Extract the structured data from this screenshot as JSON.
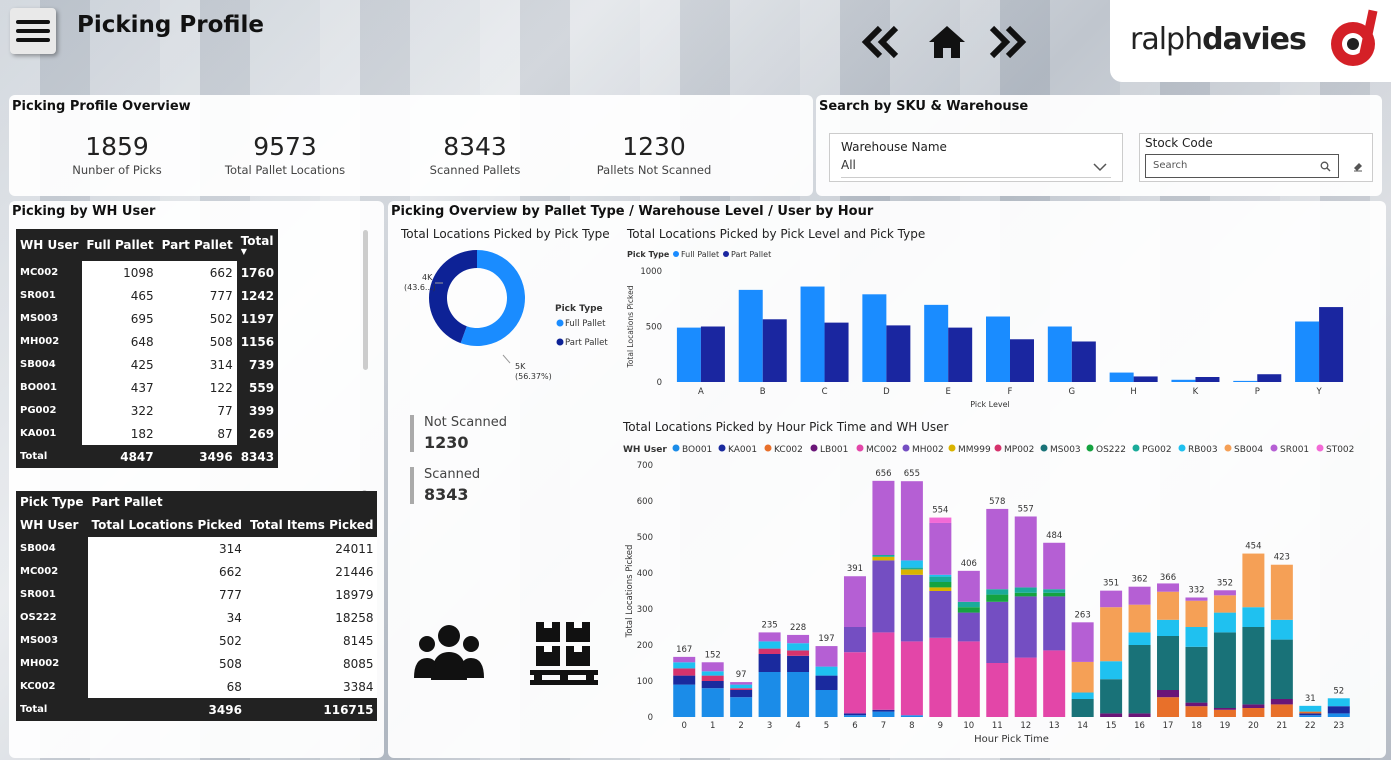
{
  "page": {
    "title": "Picking Profile"
  },
  "brand": {
    "name_light": "ralph",
    "name_bold": "davies"
  },
  "overview": {
    "title": "Picking Profile Overview",
    "kpis": [
      {
        "value": "1859",
        "label": "Nunber of Picks"
      },
      {
        "value": "9573",
        "label": "Total Pallet Locations"
      },
      {
        "value": "8343",
        "label": "Scanned Pallets"
      },
      {
        "value": "1230",
        "label": "Pallets Not Scanned"
      }
    ]
  },
  "search": {
    "title": "Search by SKU & Warehouse",
    "warehouse_label": "Warehouse Name",
    "warehouse_value": "All",
    "stock_label": "Stock Code",
    "stock_placeholder": "Search"
  },
  "wh_user_panel": {
    "title": "Picking by WH User"
  },
  "table1": {
    "headers": [
      "WH User",
      "Full Pallet",
      "Part Pallet",
      "Total"
    ],
    "rows": [
      [
        "MC002",
        "1098",
        "662",
        "1760"
      ],
      [
        "SR001",
        "465",
        "777",
        "1242"
      ],
      [
        "MS003",
        "695",
        "502",
        "1197"
      ],
      [
        "MH002",
        "648",
        "508",
        "1156"
      ],
      [
        "SB004",
        "425",
        "314",
        "739"
      ],
      [
        "BO001",
        "437",
        "122",
        "559"
      ],
      [
        "PG002",
        "322",
        "77",
        "399"
      ],
      [
        "KA001",
        "182",
        "87",
        "269"
      ]
    ],
    "total": [
      "Total",
      "4847",
      "3496",
      "8343"
    ]
  },
  "table2": {
    "pick_type_label": "Pick Type",
    "pick_type_value": "Part Pallet",
    "headers": [
      "WH User",
      "Total Locations Picked",
      "Total Items Picked"
    ],
    "rows": [
      [
        "SB004",
        "314",
        "24011"
      ],
      [
        "MC002",
        "662",
        "21446"
      ],
      [
        "SR001",
        "777",
        "18979"
      ],
      [
        "OS222",
        "34",
        "18258"
      ],
      [
        "MS003",
        "502",
        "8145"
      ],
      [
        "MH002",
        "508",
        "8085"
      ],
      [
        "KC002",
        "68",
        "3384"
      ]
    ],
    "total": [
      "Total",
      "3496",
      "116715"
    ]
  },
  "overview_panel": {
    "title": "Picking Overview by Pallet Type / Warehouse Level / User by Hour"
  },
  "cards": {
    "not_scanned_label": "Not Scanned",
    "not_scanned_value": "1230",
    "scanned_label": "Scanned",
    "scanned_value": "8343"
  },
  "icons": [
    "menu-icon",
    "first-page-icon",
    "home-icon",
    "next-page-icon",
    "search-icon",
    "eraser-icon",
    "chevron-down-icon",
    "users-icon",
    "pallet-icon"
  ],
  "chart_data": [
    {
      "type": "pie",
      "title": "Total Locations Picked by Pick Type",
      "legend_title": "Pick Type",
      "legend_position": "right",
      "slices": [
        {
          "name": "Full Pallet",
          "value": 5000,
          "label": "5K",
          "pct": "(56.37%)",
          "color": "#1a8cff"
        },
        {
          "name": "Part Pallet",
          "value": 4000,
          "label": "4K",
          "pct": "(43.6...)",
          "color": "#0d2296"
        }
      ]
    },
    {
      "type": "bar",
      "title": "Total Locations Picked by Pick Level and Pick Type",
      "legend_title": "Pick Type",
      "xlabel": "Pick Level",
      "ylabel": "Total Locations Picked",
      "ylim": [
        0,
        1000
      ],
      "yticks": [
        0,
        500,
        1000
      ],
      "categories": [
        "A",
        "B",
        "C",
        "D",
        "E",
        "F",
        "G",
        "H",
        "K",
        "P",
        "Y"
      ],
      "series": [
        {
          "name": "Full Pallet",
          "color": "#1a8cff",
          "values": [
            490,
            830,
            860,
            790,
            695,
            590,
            500,
            85,
            20,
            10,
            545
          ]
        },
        {
          "name": "Part Pallet",
          "color": "#1a26a0",
          "values": [
            500,
            565,
            535,
            510,
            490,
            385,
            365,
            50,
            45,
            70,
            675
          ]
        }
      ]
    },
    {
      "type": "bar",
      "stacked": true,
      "title": "Total Locations Picked by Hour Pick Time and WH User",
      "legend_title": "WH User",
      "xlabel": "Hour Pick Time",
      "ylabel": "Total Locations Picked",
      "ylim": [
        0,
        700
      ],
      "yticks": [
        0,
        100,
        200,
        300,
        400,
        500,
        600,
        700
      ],
      "categories": [
        "0",
        "1",
        "2",
        "3",
        "4",
        "5",
        "6",
        "7",
        "8",
        "9",
        "10",
        "11",
        "12",
        "13",
        "14",
        "15",
        "16",
        "17",
        "18",
        "19",
        "20",
        "21",
        "22",
        "23"
      ],
      "totals": [
        167,
        152,
        97,
        235,
        228,
        197,
        391,
        656,
        655,
        554,
        406,
        578,
        557,
        484,
        263,
        351,
        362,
        366,
        332,
        352,
        454,
        423,
        31,
        52
      ],
      "series": [
        {
          "name": "BO001",
          "color": "#1b8ce8",
          "values": [
            90,
            80,
            55,
            125,
            125,
            75,
            5,
            15,
            5,
            0,
            0,
            0,
            0,
            0,
            0,
            0,
            0,
            0,
            0,
            0,
            0,
            0,
            5,
            10
          ]
        },
        {
          "name": "KA001",
          "color": "#1a2a9e",
          "values": [
            25,
            20,
            20,
            50,
            45,
            40,
            5,
            5,
            0,
            0,
            0,
            0,
            0,
            0,
            0,
            0,
            0,
            0,
            0,
            0,
            0,
            0,
            5,
            20
          ]
        },
        {
          "name": "KC002",
          "color": "#e8702a",
          "values": [
            0,
            0,
            0,
            0,
            0,
            0,
            0,
            0,
            0,
            0,
            0,
            0,
            0,
            0,
            0,
            0,
            0,
            55,
            30,
            20,
            25,
            35,
            5,
            0
          ]
        },
        {
          "name": "LB001",
          "color": "#6a1578",
          "values": [
            0,
            0,
            0,
            0,
            0,
            0,
            0,
            0,
            0,
            0,
            0,
            0,
            0,
            0,
            0,
            10,
            10,
            20,
            10,
            5,
            10,
            15,
            0,
            0
          ]
        },
        {
          "name": "MC002",
          "color": "#e346a8",
          "values": [
            0,
            0,
            0,
            0,
            0,
            0,
            170,
            215,
            205,
            220,
            210,
            150,
            165,
            185,
            0,
            0,
            0,
            0,
            0,
            0,
            0,
            0,
            0,
            0
          ]
        },
        {
          "name": "MH002",
          "color": "#744ec2",
          "values": [
            0,
            0,
            0,
            0,
            0,
            0,
            70,
            200,
            185,
            130,
            80,
            170,
            170,
            150,
            0,
            0,
            0,
            0,
            0,
            0,
            0,
            0,
            0,
            0
          ]
        },
        {
          "name": "MM999",
          "color": "#d9b300",
          "values": [
            0,
            0,
            0,
            0,
            0,
            0,
            0,
            10,
            15,
            10,
            0,
            0,
            0,
            0,
            0,
            0,
            0,
            0,
            0,
            0,
            0,
            0,
            0,
            0
          ]
        },
        {
          "name": "MP002",
          "color": "#d6336c",
          "values": [
            20,
            15,
            5,
            15,
            15,
            0,
            0,
            0,
            0,
            0,
            0,
            0,
            0,
            0,
            0,
            0,
            0,
            0,
            0,
            0,
            0,
            0,
            0,
            0
          ]
        },
        {
          "name": "MS003",
          "color": "#197278",
          "values": [
            0,
            0,
            0,
            0,
            0,
            0,
            0,
            0,
            0,
            0,
            0,
            0,
            0,
            0,
            50,
            95,
            190,
            150,
            155,
            210,
            215,
            165,
            0,
            0
          ]
        },
        {
          "name": "OS222",
          "color": "#15a340",
          "values": [
            0,
            0,
            0,
            0,
            0,
            0,
            0,
            0,
            0,
            15,
            15,
            20,
            10,
            10,
            0,
            0,
            0,
            0,
            0,
            0,
            0,
            0,
            0,
            0
          ]
        },
        {
          "name": "PG002",
          "color": "#1aab9a",
          "values": [
            0,
            0,
            0,
            0,
            0,
            0,
            0,
            5,
            5,
            15,
            15,
            15,
            15,
            10,
            0,
            0,
            0,
            0,
            0,
            0,
            0,
            0,
            0,
            0
          ]
        },
        {
          "name": "RB003",
          "color": "#1fc1f0",
          "values": [
            17,
            12,
            10,
            20,
            20,
            25,
            0,
            0,
            20,
            5,
            0,
            0,
            0,
            0,
            18,
            50,
            35,
            45,
            55,
            55,
            55,
            55,
            16,
            22
          ]
        },
        {
          "name": "SB004",
          "color": "#f5a056",
          "values": [
            0,
            0,
            0,
            0,
            0,
            0,
            0,
            0,
            0,
            0,
            0,
            0,
            0,
            0,
            85,
            150,
            77,
            78,
            73,
            48,
            149,
            153,
            0,
            0
          ]
        },
        {
          "name": "SR001",
          "color": "#b55fd4",
          "values": [
            15,
            25,
            7,
            25,
            23,
            57,
            141,
            206,
            220,
            144,
            86,
            223,
            197,
            129,
            110,
            46,
            50,
            23,
            9,
            14,
            0,
            0,
            0,
            0
          ]
        },
        {
          "name": "ST002",
          "color": "#f36ad6",
          "values": [
            0,
            0,
            0,
            0,
            0,
            0,
            0,
            0,
            0,
            15,
            0,
            0,
            0,
            0,
            0,
            0,
            0,
            0,
            0,
            0,
            0,
            0,
            0,
            0
          ]
        }
      ]
    }
  ]
}
